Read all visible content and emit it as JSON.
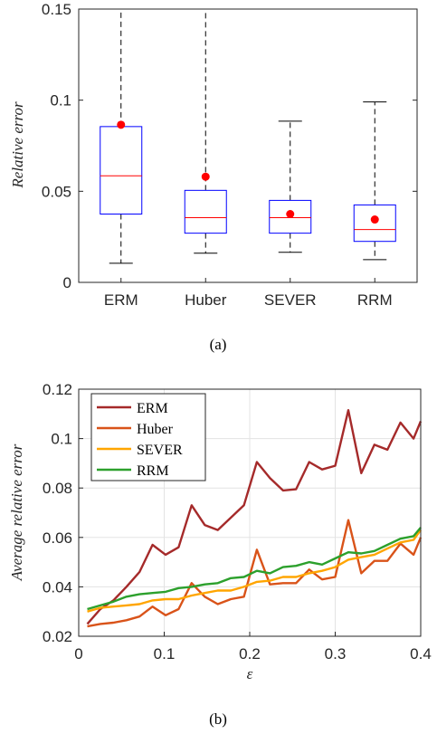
{
  "chart_data": [
    {
      "type": "box",
      "caption": "(a)",
      "ylabel": "Relative error",
      "ylim": [
        0,
        0.15
      ],
      "yticks": [
        "0",
        "0.05",
        "0.1",
        "0.15"
      ],
      "categories": [
        "ERM",
        "Huber",
        "SEVER",
        "RRM"
      ],
      "boxes": [
        {
          "name": "ERM",
          "whisker_low": 0.0105,
          "q1": 0.0375,
          "median": 0.0585,
          "q3": 0.0855,
          "whisker_high": 0.15,
          "mean": 0.0865
        },
        {
          "name": "Huber",
          "whisker_low": 0.016,
          "q1": 0.027,
          "median": 0.0355,
          "q3": 0.0505,
          "whisker_high": 0.15,
          "mean": 0.058
        },
        {
          "name": "SEVER",
          "whisker_low": 0.0165,
          "q1": 0.027,
          "median": 0.0355,
          "q3": 0.045,
          "whisker_high": 0.0885,
          "mean": 0.0375
        },
        {
          "name": "RRM",
          "whisker_low": 0.0125,
          "q1": 0.0225,
          "median": 0.029,
          "q3": 0.0425,
          "whisker_high": 0.099,
          "mean": 0.0345
        }
      ],
      "colors": {
        "box": "#0000ff",
        "median": "#ff0000",
        "mean": "#ff0000",
        "whisker": "#000000"
      }
    },
    {
      "type": "line",
      "caption": "(b)",
      "xlabel": "ε",
      "ylabel": "Average relative error",
      "xlim": [
        0,
        0.4
      ],
      "ylim": [
        0.02,
        0.12
      ],
      "xticks": [
        "0",
        "0.1",
        "0.2",
        "0.3",
        "0.4"
      ],
      "yticks": [
        "0.02",
        "0.04",
        "0.06",
        "0.08",
        "0.1",
        "0.12"
      ],
      "grid": true,
      "legend_position": "top-left",
      "x": [
        0.01,
        0.0253,
        0.0405,
        0.0558,
        0.0711,
        0.0863,
        0.1016,
        0.1168,
        0.1321,
        0.1474,
        0.1626,
        0.1779,
        0.1932,
        0.2084,
        0.2237,
        0.2389,
        0.2542,
        0.2695,
        0.2847,
        0.3,
        0.3153,
        0.3305,
        0.3458,
        0.3611,
        0.3763,
        0.3916,
        0.4
      ],
      "series": [
        {
          "name": "ERM",
          "color": "#a52a2a",
          "values": [
            0.025,
            0.031,
            0.0345,
            0.04,
            0.046,
            0.057,
            0.053,
            0.056,
            0.073,
            0.065,
            0.063,
            0.068,
            0.073,
            0.0905,
            0.084,
            0.079,
            0.0795,
            0.0905,
            0.0875,
            0.089,
            0.1115,
            0.086,
            0.0975,
            0.0955,
            0.1065,
            0.1,
            0.107
          ]
        },
        {
          "name": "Huber",
          "color": "#d95319",
          "values": [
            0.024,
            0.025,
            0.0255,
            0.0265,
            0.028,
            0.032,
            0.0285,
            0.031,
            0.0415,
            0.036,
            0.033,
            0.035,
            0.036,
            0.055,
            0.041,
            0.0415,
            0.0415,
            0.047,
            0.043,
            0.044,
            0.067,
            0.0455,
            0.0505,
            0.0505,
            0.0575,
            0.053,
            0.06
          ]
        },
        {
          "name": "SEVER",
          "color": "#ffa500",
          "values": [
            0.03,
            0.0315,
            0.032,
            0.0325,
            0.033,
            0.0345,
            0.035,
            0.035,
            0.0365,
            0.0375,
            0.0385,
            0.0385,
            0.04,
            0.042,
            0.0425,
            0.044,
            0.044,
            0.0455,
            0.0465,
            0.048,
            0.051,
            0.052,
            0.053,
            0.0555,
            0.058,
            0.059,
            0.063
          ]
        },
        {
          "name": "RRM",
          "color": "#2ca02c",
          "values": [
            0.031,
            0.0325,
            0.034,
            0.036,
            0.037,
            0.0375,
            0.038,
            0.0395,
            0.04,
            0.041,
            0.0415,
            0.0435,
            0.044,
            0.0465,
            0.0455,
            0.048,
            0.0485,
            0.05,
            0.049,
            0.0515,
            0.054,
            0.0535,
            0.0545,
            0.057,
            0.0595,
            0.0605,
            0.064
          ]
        }
      ]
    }
  ]
}
